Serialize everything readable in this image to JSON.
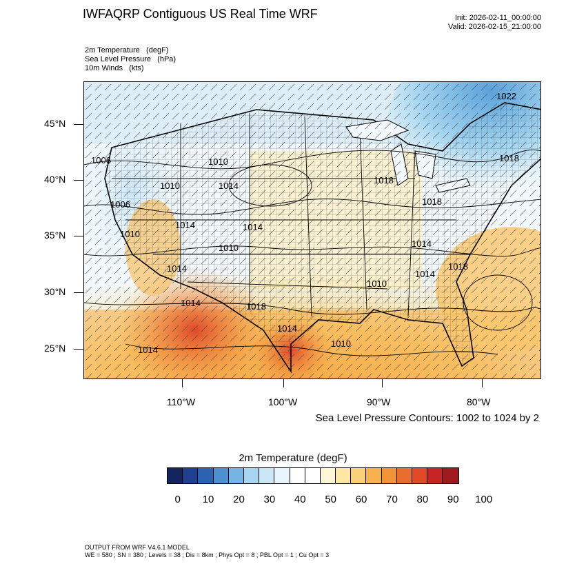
{
  "header": {
    "title": "IWFAQRP Contiguous US Real Time WRF",
    "init": "Init: 2026-02-11_00:00:00",
    "valid": "Valid: 2026-02-15_21:00:00"
  },
  "fields": [
    "2m Temperature   (degF)",
    "Sea Level Pressure   (hPa)",
    "10m Winds   (kts)"
  ],
  "map": {
    "lat_labels": [
      "45°N",
      "40°N",
      "35°N",
      "30°N",
      "25°N"
    ],
    "lon_labels": [
      "110°W",
      "100°W",
      "90°W",
      "80°W"
    ],
    "contour_note": "Sea Level Pressure Contours: 1002 to 1024 by 2",
    "pressure_labels": [
      "1006",
      "1010",
      "1010",
      "1014",
      "1006",
      "1010",
      "1014",
      "1014",
      "1010",
      "1014",
      "1018",
      "1014",
      "1018",
      "1018",
      "1010",
      "1014",
      "1018",
      "1014",
      "1010",
      "1014",
      "1022",
      "1014",
      "1018"
    ]
  },
  "colorbar": {
    "title": "2m Temperature  (degF)",
    "colors": [
      "#14245c",
      "#1f3f8f",
      "#2b63b3",
      "#4d8fd0",
      "#75b4e3",
      "#a6d6f1",
      "#cbe7f7",
      "#e8f5fc",
      "#ffffff",
      "#ffffff",
      "#fff6d6",
      "#fde7a6",
      "#fbd07a",
      "#f8b14f",
      "#f29335",
      "#ea6d2e",
      "#e04828",
      "#c82325",
      "#a01820"
    ],
    "labels": [
      "0",
      "10",
      "20",
      "30",
      "40",
      "50",
      "60",
      "70",
      "80",
      "90",
      "100"
    ]
  },
  "footer": {
    "line1": "OUTPUT FROM WRF V4.6.1 MODEL",
    "line2": "WE = 580 ; SN = 380 ; Levels = 38 ; Dis = 8km ; Phys Opt = 8 ; PBL Opt = 1 ; Cu Opt = 3"
  }
}
